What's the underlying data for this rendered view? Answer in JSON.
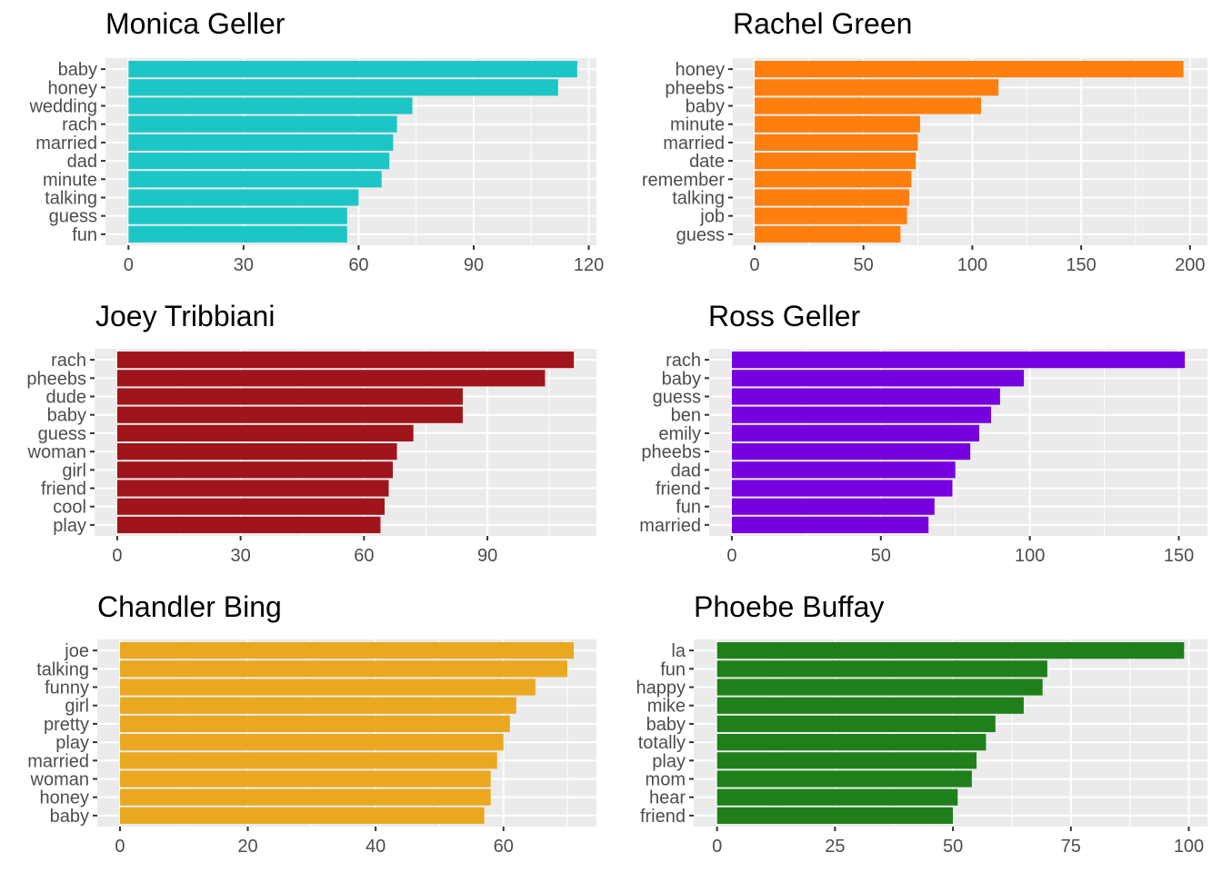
{
  "chart_data": [
    {
      "type": "bar",
      "orientation": "horizontal",
      "title": "Monica Geller",
      "color": "#1CC6C6",
      "categories": [
        "baby",
        "honey",
        "wedding",
        "rach",
        "married",
        "dad",
        "minute",
        "talking",
        "guess",
        "fun"
      ],
      "values": [
        117,
        112,
        74,
        70,
        69,
        68,
        66,
        60,
        57,
        57
      ],
      "xlim": [
        -6,
        122
      ],
      "xticks": [
        0,
        30,
        60,
        90,
        120
      ],
      "grid": true
    },
    {
      "type": "bar",
      "orientation": "horizontal",
      "title": "Rachel Green",
      "color": "#FF7F0E",
      "categories": [
        "honey",
        "pheebs",
        "baby",
        "minute",
        "married",
        "date",
        "remember",
        "talking",
        "job",
        "guess"
      ],
      "values": [
        197,
        112,
        104,
        76,
        75,
        74,
        72,
        71,
        70,
        67
      ],
      "xlim": [
        -10,
        208
      ],
      "xticks": [
        0,
        50,
        100,
        150,
        200
      ],
      "grid": true
    },
    {
      "type": "bar",
      "orientation": "horizontal",
      "title": "Joey Tribbiani",
      "color": "#A0141C",
      "categories": [
        "rach",
        "pheebs",
        "dude",
        "baby",
        "guess",
        "woman",
        "girl",
        "friend",
        "cool",
        "play"
      ],
      "values": [
        111,
        104,
        84,
        84,
        72,
        68,
        67,
        66,
        65,
        64
      ],
      "xlim": [
        -5.5,
        116.5
      ],
      "xticks": [
        0,
        30,
        60,
        90
      ],
      "grid": true
    },
    {
      "type": "bar",
      "orientation": "horizontal",
      "title": "Ross Geller",
      "color": "#7600E0",
      "categories": [
        "rach",
        "baby",
        "guess",
        "ben",
        "emily",
        "pheebs",
        "dad",
        "friend",
        "fun",
        "married"
      ],
      "values": [
        152,
        98,
        90,
        87,
        83,
        80,
        75,
        74,
        68,
        66
      ],
      "xlim": [
        -7.6,
        159.6
      ],
      "xticks": [
        0,
        50,
        100,
        150
      ],
      "grid": true
    },
    {
      "type": "bar",
      "orientation": "horizontal",
      "title": "Chandler Bing",
      "color": "#E9A820",
      "categories": [
        "joe",
        "talking",
        "funny",
        "girl",
        "pretty",
        "play",
        "married",
        "woman",
        "honey",
        "baby"
      ],
      "values": [
        71,
        70,
        65,
        62,
        61,
        60,
        59,
        58,
        58,
        57
      ],
      "xlim": [
        -3.55,
        74.55
      ],
      "xticks": [
        0,
        20,
        40,
        60
      ],
      "grid": true
    },
    {
      "type": "bar",
      "orientation": "horizontal",
      "title": "Phoebe Buffay",
      "color": "#1F7F1A",
      "categories": [
        "la",
        "fun",
        "happy",
        "mike",
        "baby",
        "totally",
        "play",
        "mom",
        "hear",
        "friend"
      ],
      "values": [
        99,
        70,
        69,
        65,
        59,
        57,
        55,
        54,
        51,
        50
      ],
      "xlim": [
        -4.95,
        103.95
      ],
      "xticks": [
        0,
        25,
        50,
        75,
        100
      ],
      "grid": true
    }
  ]
}
